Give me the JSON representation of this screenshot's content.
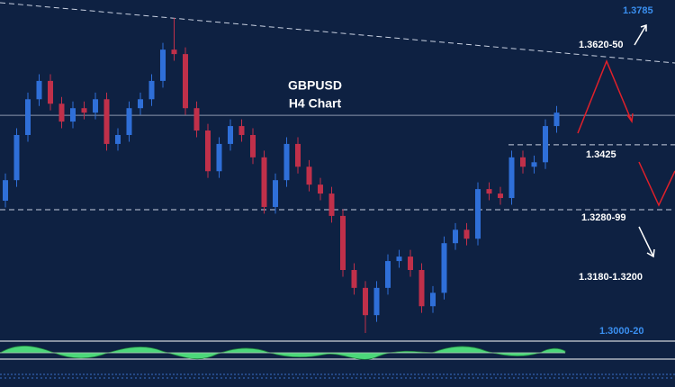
{
  "chart_data": {
    "type": "candlestick",
    "title": "GBPUSD",
    "subtitle": "H4 Chart",
    "ylim": [
      1.2994,
      1.3749
    ],
    "up_color": "#2f6fd8",
    "down_color": "#c0304a",
    "hlines": [
      1.3491,
      1.3425,
      1.328
    ],
    "annotations": [
      "1.3785",
      "1.3620-50",
      "1.3425",
      "1.3280-99",
      "1.3180-1.3200",
      "1.3000-20"
    ],
    "open": [
      1.33,
      1.3346,
      1.3447,
      1.3527,
      1.3568,
      1.3517,
      1.3477,
      1.3507,
      1.3497,
      1.3527,
      1.3427,
      1.3447,
      1.3507,
      1.3527,
      1.3568,
      1.3638,
      1.3628,
      1.3507,
      1.3457,
      1.3366,
      1.3427,
      1.3467,
      1.3447,
      1.3397,
      1.3286,
      1.3346,
      1.3427,
      1.3376,
      1.3336,
      1.3316,
      1.3266,
      1.3145,
      1.3105,
      1.3044,
      1.3105,
      1.3165,
      1.3175,
      1.3145,
      1.3064,
      1.3094,
      1.3205,
      1.3235,
      1.3215,
      1.3326,
      1.3316,
      1.3306,
      1.3397,
      1.3376,
      1.3386,
      1.3467
    ],
    "high": [
      1.3361,
      1.3462,
      1.3542,
      1.3583,
      1.3583,
      1.3532,
      1.3522,
      1.3522,
      1.3542,
      1.3542,
      1.3462,
      1.3522,
      1.3542,
      1.3583,
      1.3653,
      1.3709,
      1.3643,
      1.3522,
      1.3472,
      1.3442,
      1.3482,
      1.3482,
      1.3462,
      1.3412,
      1.3361,
      1.3442,
      1.3442,
      1.3391,
      1.3351,
      1.3331,
      1.3281,
      1.316,
      1.312,
      1.312,
      1.318,
      1.319,
      1.319,
      1.316,
      1.3109,
      1.322,
      1.325,
      1.325,
      1.3341,
      1.3341,
      1.3331,
      1.3412,
      1.3412,
      1.3401,
      1.3482,
      1.3512
    ],
    "low": [
      1.3285,
      1.3331,
      1.3432,
      1.3512,
      1.3502,
      1.3462,
      1.3462,
      1.3482,
      1.3482,
      1.3412,
      1.3412,
      1.3432,
      1.3492,
      1.3512,
      1.3553,
      1.3613,
      1.3492,
      1.3442,
      1.3351,
      1.3351,
      1.3412,
      1.3432,
      1.3382,
      1.3271,
      1.3271,
      1.3331,
      1.3361,
      1.3321,
      1.3301,
      1.3251,
      1.313,
      1.309,
      1.3004,
      1.3029,
      1.309,
      1.315,
      1.313,
      1.3049,
      1.3049,
      1.3079,
      1.319,
      1.32,
      1.32,
      1.3301,
      1.3291,
      1.3291,
      1.3361,
      1.3361,
      1.3371,
      1.3452
    ],
    "close": [
      1.3346,
      1.3447,
      1.3527,
      1.3568,
      1.3517,
      1.3477,
      1.3507,
      1.3497,
      1.3527,
      1.3427,
      1.3447,
      1.3507,
      1.3527,
      1.3568,
      1.3638,
      1.3628,
      1.3507,
      1.3457,
      1.3366,
      1.3427,
      1.3467,
      1.3447,
      1.3397,
      1.3286,
      1.3346,
      1.3427,
      1.3376,
      1.3336,
      1.3316,
      1.3266,
      1.3145,
      1.3105,
      1.3044,
      1.3105,
      1.3165,
      1.3175,
      1.3145,
      1.3064,
      1.3094,
      1.3205,
      1.3235,
      1.3215,
      1.3326,
      1.3316,
      1.3306,
      1.3397,
      1.3376,
      1.3386,
      1.3467,
      1.3497
    ]
  }
}
